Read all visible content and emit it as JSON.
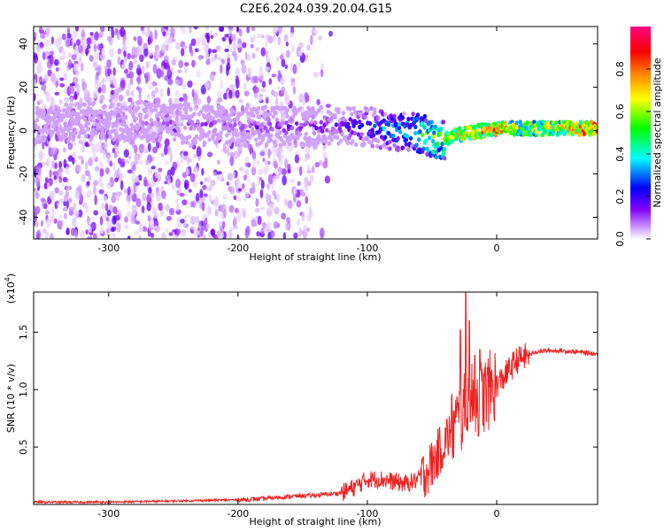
{
  "figure_title": "C2E6.2024.039.20.04.G15",
  "chart_data": [
    {
      "type": "heatmap",
      "title": "C2E6.2024.039.20.04.G15",
      "xlabel": "Height of straight line (km)",
      "ylabel": "Frequency (Hz)",
      "xlim": [
        -358,
        78
      ],
      "ylim": [
        -50,
        48
      ],
      "x_ticks": [
        -300,
        -200,
        -100,
        0
      ],
      "x_tick_labels": [
        "-300",
        "-200",
        "-100",
        "0"
      ],
      "y_ticks": [
        -40,
        -20,
        0,
        20,
        40
      ],
      "y_tick_labels": [
        "-40",
        "-20",
        "0",
        "20",
        "40"
      ],
      "grid": false,
      "colorbar": {
        "label": "Normalized spectral amplitude",
        "range": [
          0,
          1
        ],
        "ticks": [
          0.0,
          0.2,
          0.4,
          0.6,
          0.8
        ],
        "tick_labels": [
          "0.0",
          "0.2",
          "0.4",
          "0.6",
          "0.8"
        ],
        "colormap": [
          "#ffffff",
          "#d9b3ff",
          "#8000ff",
          "#0000ff",
          "#00ffff",
          "#00ff00",
          "#ffff00",
          "#ff8000",
          "#ff0000",
          "#ff0080"
        ]
      },
      "ridge_frequency": {
        "x": [
          -358,
          -300,
          -260,
          -200,
          -150,
          -100,
          -80,
          -60,
          -50,
          -40,
          -30,
          -20,
          -10,
          0,
          20,
          50,
          78
        ],
        "y": [
          2,
          5,
          4,
          2,
          2,
          2,
          0,
          -1,
          -4,
          -4,
          -2,
          -1,
          0,
          1,
          1,
          1,
          1
        ]
      },
      "ridge_amplitude": {
        "x": [
          -358,
          -280,
          -200,
          -150,
          -120,
          -100,
          -80,
          -60,
          -50,
          -40,
          -30,
          -20,
          -10,
          0,
          20,
          50,
          78
        ],
        "y": [
          0.05,
          0.1,
          0.15,
          0.18,
          0.2,
          0.3,
          0.4,
          0.5,
          0.6,
          0.65,
          0.7,
          0.75,
          0.8,
          0.85,
          0.6,
          0.7,
          0.95
        ]
      },
      "noise_floor_x_extent": [
        -358,
        -130
      ]
    },
    {
      "type": "line",
      "title": "",
      "xlabel": "Height of straight line (km)",
      "ylabel": "SNR (10 * v/v)",
      "y_scale_label": "(x10",
      "y_scale_exponent": "4",
      "y_scale_suffix": ")",
      "xlim": [
        -358,
        78
      ],
      "ylim": [
        0,
        1.85
      ],
      "x_ticks": [
        -300,
        -200,
        -100,
        0
      ],
      "x_tick_labels": [
        "-300",
        "-200",
        "-100",
        "0"
      ],
      "y_ticks": [
        0.5,
        1.0,
        1.5
      ],
      "y_tick_labels": [
        "0.5",
        "1.0",
        "1.5"
      ],
      "grid": false,
      "color": "#ee2222",
      "x": [
        -358,
        -300,
        -250,
        -200,
        -180,
        -160,
        -140,
        -120,
        -110,
        -100,
        -90,
        -80,
        -70,
        -60,
        -55,
        -50,
        -45,
        -40,
        -35,
        -30,
        -25,
        -20,
        -15,
        -10,
        -5,
        0,
        5,
        10,
        15,
        20,
        25,
        30,
        40,
        50,
        60,
        70,
        78
      ],
      "y": [
        0.02,
        0.02,
        0.03,
        0.04,
        0.05,
        0.07,
        0.08,
        0.1,
        0.15,
        0.22,
        0.22,
        0.2,
        0.18,
        0.22,
        0.28,
        0.35,
        0.45,
        0.55,
        0.65,
        0.72,
        0.8,
        0.88,
        0.92,
        0.95,
        1.0,
        1.05,
        1.1,
        1.18,
        1.25,
        1.28,
        1.3,
        1.33,
        1.34,
        1.34,
        1.33,
        1.32,
        1.31
      ],
      "spikes": [
        {
          "x": -24,
          "y": 1.85
        },
        {
          "x": -28,
          "y": 1.52
        },
        {
          "x": -21,
          "y": 1.6
        },
        {
          "x": -13,
          "y": 1.35
        },
        {
          "x": -17,
          "y": 1.3
        }
      ]
    }
  ]
}
